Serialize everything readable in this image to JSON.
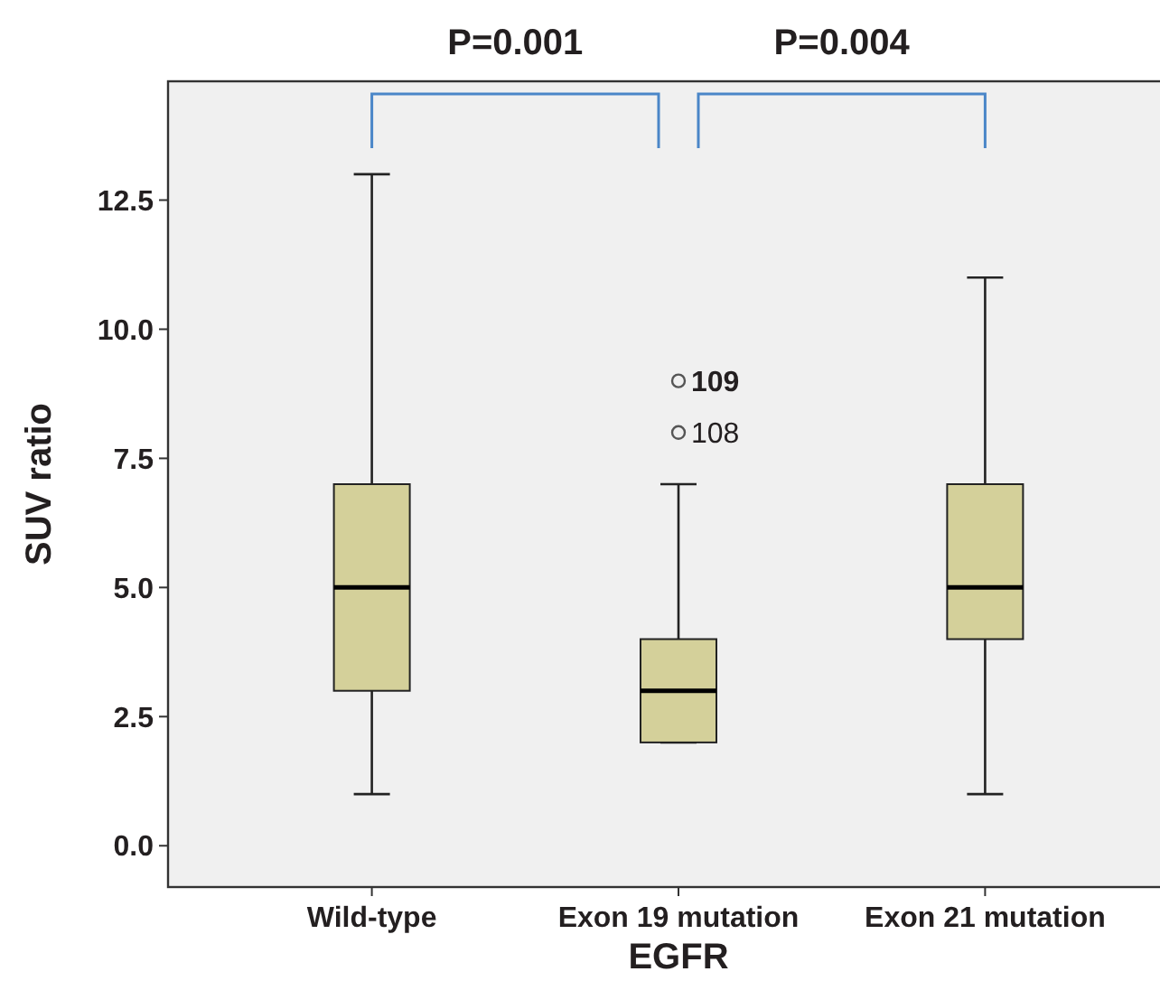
{
  "chart_data": {
    "type": "box",
    "xlabel": "EGFR",
    "ylabel": "SUV ratio",
    "categories": [
      "Wild-type",
      "Exon 19 mutation",
      "Exon 21 mutation"
    ],
    "color": "#d4d09a",
    "boxes": [
      {
        "low": 1,
        "q1": 3,
        "median": 5,
        "q3": 7,
        "high": 13
      },
      {
        "low": 2,
        "q1": 2,
        "median": 3,
        "q3": 4,
        "high": 7,
        "outliers": [
          8,
          9
        ]
      },
      {
        "low": 1,
        "q1": 4,
        "median": 5,
        "q3": 7,
        "high": 11
      }
    ],
    "ylim": [
      -0.8,
      14.8
    ],
    "yticks": [
      {
        "value": 0,
        "label": "0.0"
      },
      {
        "value": 2.5,
        "label": "2.5"
      },
      {
        "value": 5,
        "label": "5.0"
      },
      {
        "value": 7.5,
        "label": "7.5"
      },
      {
        "value": 10,
        "label": "10.0"
      },
      {
        "value": 12.5,
        "label": "12.5"
      }
    ],
    "annotations": [
      "P=0.001",
      "P=0.004",
      "109",
      "108"
    ]
  }
}
